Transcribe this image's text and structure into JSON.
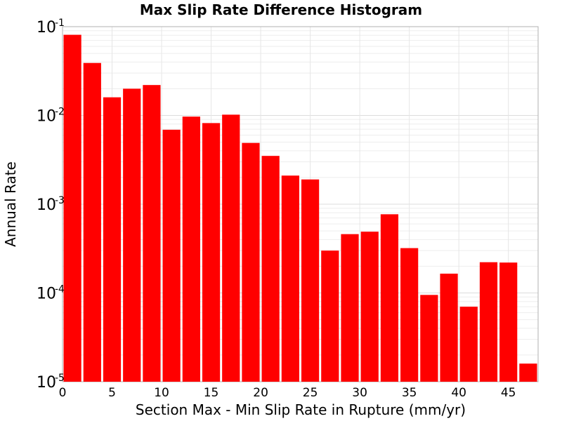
{
  "chart_data": {
    "type": "bar",
    "title": "Max Slip Rate Difference Histogram",
    "xlabel": "Section Max - Min Slip Rate in Rupture (mm/yr)",
    "ylabel": "Annual Rate",
    "y_scale": "log",
    "xlim": [
      0,
      48
    ],
    "ylim": [
      1e-05,
      0.1
    ],
    "grid": true,
    "bin_width": 2,
    "x_ticks": [
      "0",
      "5",
      "10",
      "15",
      "20",
      "25",
      "30",
      "35",
      "40",
      "45"
    ],
    "y_ticks": [
      {
        "base": "10",
        "exp": "-1"
      },
      {
        "base": "10",
        "exp": "-2"
      },
      {
        "base": "10",
        "exp": "-3"
      },
      {
        "base": "10",
        "exp": "-4"
      },
      {
        "base": "10",
        "exp": "-5"
      }
    ],
    "bin_centers": [
      1,
      3,
      5,
      7,
      9,
      11,
      13,
      15,
      17,
      19,
      21,
      23,
      25,
      27,
      29,
      31,
      33,
      35,
      37,
      39,
      41,
      43,
      45,
      47
    ],
    "values": [
      0.081,
      0.039,
      0.016,
      0.02,
      0.022,
      0.0069,
      0.0097,
      0.0082,
      0.0102,
      0.0049,
      0.0035,
      0.0021,
      0.0019,
      0.0003,
      0.00046,
      0.00049,
      0.00077,
      0.00032,
      9.5e-05,
      0.000165,
      7e-05,
      0.000222,
      0.00022,
      1.6e-05
    ],
    "bar_color": "#ff0000"
  }
}
